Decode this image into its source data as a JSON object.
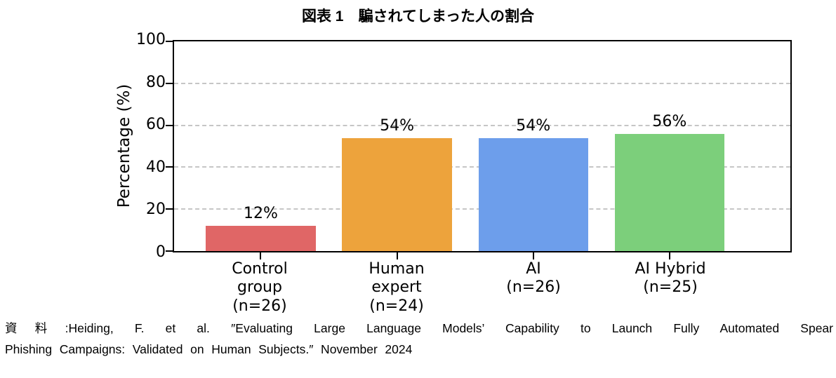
{
  "title": "図表 1　騙されてしまった人の割合",
  "chart_data": {
    "type": "bar",
    "title": "図表 1　騙されてしまった人の割合",
    "ylabel": "Percentage (%)",
    "xlabel": "",
    "ylim": [
      0,
      100
    ],
    "yticks": [
      0,
      20,
      40,
      60,
      80,
      100
    ],
    "grid": "horizontal-dashed",
    "legend": "none",
    "categories": [
      "Control\ngroup\n(n=26)",
      "Human\nexpert\n(n=24)",
      "AI\n(n=26)",
      "AI Hybrid\n(n=25)"
    ],
    "values": [
      12,
      54,
      54,
      56
    ],
    "value_labels": [
      "12%",
      "54%",
      "54%",
      "56%"
    ],
    "bar_colors": [
      "#e06666",
      "#eda33c",
      "#6d9eeb",
      "#7ccf7b"
    ]
  },
  "source": {
    "lines": [
      "資料:Heiding, F. et al. ″Evaluating Large Language Models’ Capability to Launch Fully Automated Spear",
      "Phishing Campaigns: Validated on Human Subjects.″ November 2024"
    ],
    "full_text": "資料:Heiding, F. et al. ″Evaluating Large Language Models’ Capability to Launch Fully Automated Spear Phishing Campaigns: Validated on Human Subjects.″ November 2024"
  }
}
